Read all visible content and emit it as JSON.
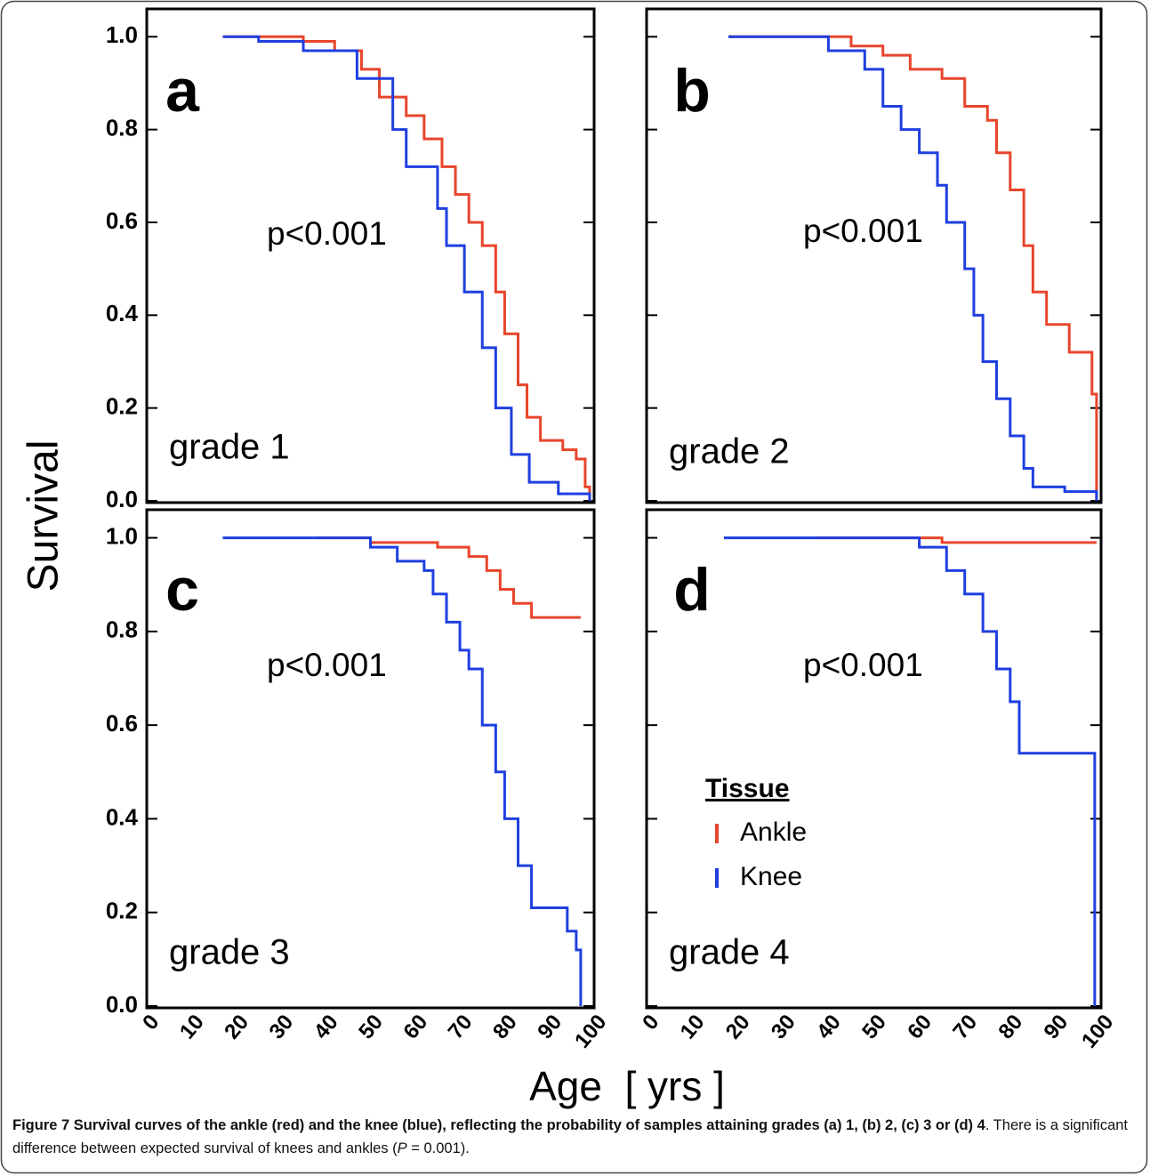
{
  "chart_data": [
    {
      "type": "line",
      "step": "post",
      "panel_label": "a",
      "annotation": "p<0.001",
      "grade_label": "grade 1",
      "xlim": [
        0,
        100
      ],
      "ylim": [
        0,
        1.06
      ],
      "yticks": [
        {
          "value": 0,
          "label": "0.0"
        },
        0.2,
        0.4,
        0.6,
        0.8,
        {
          "value": 1,
          "label": "1.0"
        }
      ],
      "series": [
        {
          "color": "#e8452c",
          "x": [
            17,
            30,
            35,
            42,
            48,
            52,
            58,
            62,
            66,
            69,
            72,
            75,
            78,
            80,
            83,
            85,
            88,
            93,
            96,
            98,
            99
          ],
          "values": [
            1.0,
            1.0,
            0.99,
            0.97,
            0.93,
            0.87,
            0.83,
            0.78,
            0.72,
            0.66,
            0.6,
            0.55,
            0.45,
            0.36,
            0.25,
            0.18,
            0.13,
            0.11,
            0.09,
            0.03,
            0
          ]
        },
        {
          "color": "#1f3fe0",
          "x": [
            17,
            25,
            35,
            47,
            55,
            58,
            65,
            67,
            71,
            75,
            78,
            81.5,
            85.5,
            92,
            99
          ],
          "values": [
            1.0,
            0.99,
            0.97,
            0.91,
            0.8,
            0.72,
            0.63,
            0.55,
            0.45,
            0.33,
            0.2,
            0.1,
            0.04,
            0.015,
            0
          ]
        }
      ]
    },
    {
      "type": "line",
      "step": "post",
      "panel_label": "b",
      "annotation": "p<0.001",
      "grade_label": "grade 2",
      "xlim": [
        0,
        100
      ],
      "ylim": [
        0,
        1.06
      ],
      "yticks": [
        {
          "value": 0,
          "label": "0.0"
        },
        0.2,
        0.4,
        0.6,
        0.8,
        {
          "value": 1,
          "label": "1.0"
        }
      ],
      "series": [
        {
          "color": "#e8452c",
          "x": [
            18,
            40,
            45,
            52,
            58,
            65,
            70,
            75,
            77,
            80,
            83,
            85,
            88,
            93,
            98,
            99
          ],
          "values": [
            1.0,
            1.0,
            0.98,
            0.96,
            0.93,
            0.91,
            0.85,
            0.82,
            0.75,
            0.67,
            0.55,
            0.45,
            0.38,
            0.32,
            0.23,
            0
          ]
        },
        {
          "color": "#1f3fe0",
          "x": [
            18,
            30,
            40,
            48,
            52,
            56,
            60,
            64,
            66,
            70,
            72,
            74,
            77,
            80,
            83,
            85,
            92,
            99
          ],
          "values": [
            1.0,
            1.0,
            0.97,
            0.93,
            0.85,
            0.8,
            0.75,
            0.68,
            0.6,
            0.5,
            0.4,
            0.3,
            0.22,
            0.14,
            0.07,
            0.03,
            0.02,
            0
          ]
        }
      ]
    },
    {
      "type": "line",
      "step": "post",
      "panel_label": "c",
      "annotation": "p<0.001",
      "grade_label": "grade 3",
      "xlim": [
        0,
        100
      ],
      "ylim": [
        0,
        1.06
      ],
      "yticks": [
        {
          "value": 0,
          "label": "0.0"
        },
        0.2,
        0.4,
        0.6,
        0.8,
        {
          "value": 1,
          "label": "1.0"
        }
      ],
      "xticks": [
        0,
        10,
        20,
        30,
        40,
        50,
        60,
        70,
        80,
        90,
        100
      ],
      "series": [
        {
          "color": "#e8452c",
          "x": [
            38,
            45,
            50,
            65,
            72,
            76,
            79,
            82,
            86,
            97
          ],
          "values": [
            1.0,
            1.0,
            0.99,
            0.98,
            0.96,
            0.93,
            0.89,
            0.86,
            0.83,
            0.83
          ]
        },
        {
          "color": "#1f3fe0",
          "x": [
            17,
            42,
            50,
            56,
            62,
            64,
            67,
            70,
            72,
            75,
            78,
            80,
            83,
            86,
            94,
            96,
            97
          ],
          "values": [
            1.0,
            1.0,
            0.98,
            0.95,
            0.93,
            0.88,
            0.82,
            0.76,
            0.72,
            0.6,
            0.5,
            0.4,
            0.3,
            0.21,
            0.16,
            0.12,
            0
          ]
        }
      ]
    },
    {
      "type": "line",
      "step": "post",
      "panel_label": "d",
      "annotation": "p<0.001",
      "grade_label": "grade 4",
      "xlim": [
        0,
        100
      ],
      "ylim": [
        0,
        1.06
      ],
      "yticks": [
        {
          "value": 0,
          "label": "0.0"
        },
        0.2,
        0.4,
        0.6,
        0.8,
        {
          "value": 1,
          "label": "1.0"
        }
      ],
      "xticks": [
        0,
        10,
        20,
        30,
        40,
        50,
        60,
        70,
        80,
        90,
        100
      ],
      "legend_title": "Tissue",
      "series": [
        {
          "name": "Ankle",
          "color": "#e8452c",
          "x": [
            37,
            60,
            65,
            99
          ],
          "values": [
            1.0,
            1.0,
            0.99,
            0.99
          ]
        },
        {
          "name": "Knee",
          "color": "#1f3fe0",
          "x": [
            17,
            55,
            60,
            66,
            70,
            74,
            77,
            80,
            82,
            98,
            98.6
          ],
          "values": [
            1.0,
            1.0,
            0.98,
            0.93,
            0.88,
            0.8,
            0.72,
            0.65,
            0.54,
            0.54,
            0
          ]
        }
      ]
    }
  ],
  "figure": {
    "ylabel": "Survival",
    "xlabel": "Age  [ yrs ]",
    "caption": {
      "bold": "Figure 7 Survival curves of the ankle (red) and the knee (blue), reflecting the probability of samples attaining grades (a) 1, (b) 2, (c) 3 or (d) 4",
      "text_1": ". There is a significant difference between expected survival of knees and ankles (",
      "italic": "P",
      "text_2": " = 0.001)."
    }
  }
}
